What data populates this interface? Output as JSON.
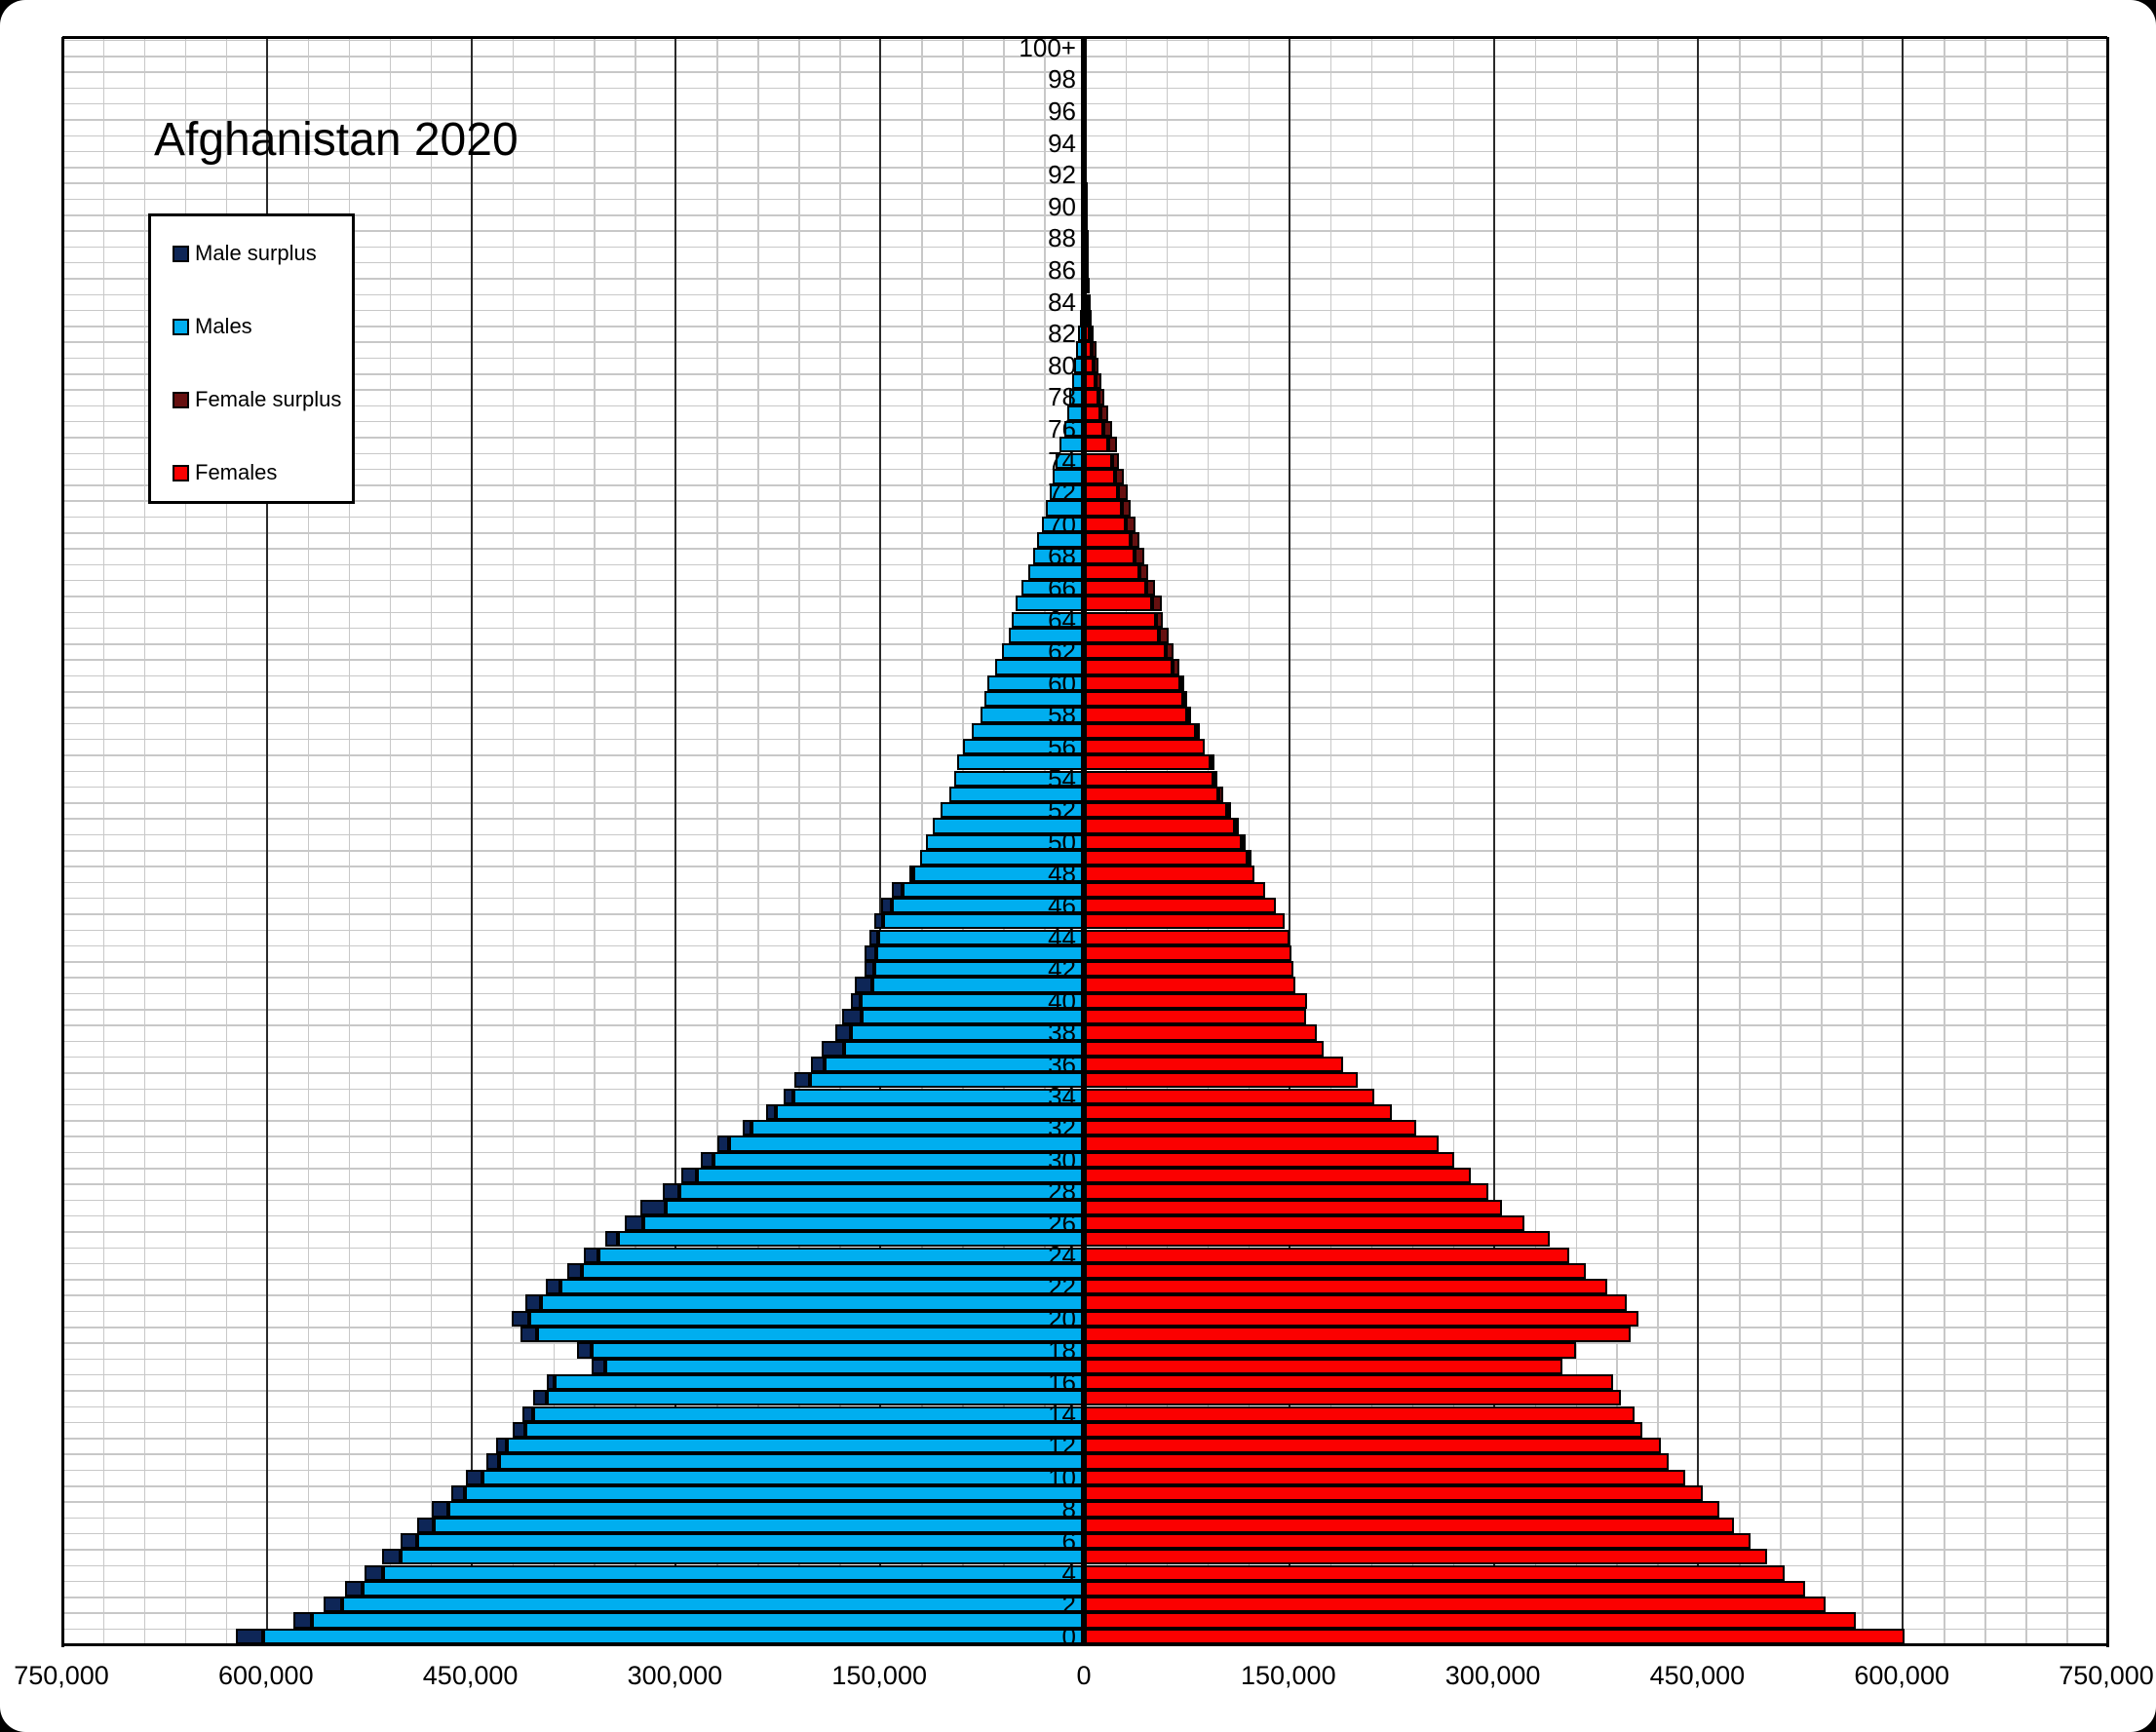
{
  "title": "Afghanistan 2020",
  "colors": {
    "male": "#00aeef",
    "male_surplus": "#0e2657",
    "female": "#fb0000",
    "female_surplus": "#661010",
    "grid_minor": "#c8c8c8",
    "grid_major": "#2a2a2a",
    "axis": "#000000"
  },
  "legend": {
    "items": [
      {
        "label": "Male surplus",
        "color": "#0e2657"
      },
      {
        "label": "Males",
        "color": "#00aeef"
      },
      {
        "label": "Female surplus",
        "color": "#661010"
      },
      {
        "label": "Females",
        "color": "#fb0000"
      }
    ]
  },
  "chart_data": {
    "type": "bar",
    "variant": "population-pyramid",
    "title": "Afghanistan 2020",
    "legend_position": "upper-left",
    "grid": "on",
    "x_axis": {
      "min": -750000,
      "max": 750000,
      "tick_interval": 150000,
      "minor_interval": 30000,
      "tick_labels": [
        "750,000",
        "600,000",
        "450,000",
        "300,000",
        "150,000",
        "0",
        "150,000",
        "300,000",
        "450,000",
        "600,000",
        "750,000"
      ]
    },
    "y_axis": {
      "unit": "single year of age",
      "min": 0,
      "max": 100,
      "label_step": 2,
      "age_labels": [
        "0",
        "2",
        "4",
        "6",
        "8",
        "10",
        "12",
        "14",
        "16",
        "18",
        "20",
        "22",
        "24",
        "26",
        "28",
        "30",
        "32",
        "34",
        "36",
        "38",
        "40",
        "42",
        "44",
        "46",
        "48",
        "50",
        "52",
        "54",
        "56",
        "58",
        "60",
        "62",
        "64",
        "66",
        "68",
        "70",
        "72",
        "74",
        "76",
        "78",
        "80",
        "82",
        "84",
        "86",
        "88",
        "90",
        "92",
        "94",
        "96",
        "98",
        "100+"
      ]
    },
    "series": [
      {
        "name": "Males",
        "side": "left",
        "values": [
          622000,
          580000,
          558000,
          542000,
          528000,
          515000,
          501000,
          489000,
          478000,
          464000,
          453000,
          438000,
          431000,
          419000,
          412000,
          404000,
          394000,
          361000,
          372000,
          413000,
          420000,
          410000,
          395000,
          379000,
          367000,
          351000,
          337000,
          325000,
          309000,
          295000,
          281000,
          269000,
          250000,
          233000,
          220000,
          212000,
          200000,
          192000,
          182000,
          177000,
          171000,
          168000,
          161000,
          161000,
          157000,
          154000,
          149000,
          141000,
          128000,
          120000,
          116000,
          111000,
          105000,
          99000,
          95000,
          93000,
          89000,
          82000,
          76000,
          73000,
          71000,
          65000,
          60000,
          55000,
          53000,
          50000,
          46000,
          41000,
          37000,
          34000,
          31000,
          28000,
          25000,
          23000,
          21000,
          18000,
          14000,
          12000,
          11000,
          8500,
          7000,
          5700,
          4300,
          3100,
          2300,
          1500,
          1000,
          700,
          450,
          300,
          200,
          130,
          90,
          60,
          40,
          25,
          15,
          10,
          7,
          5,
          3
        ]
      },
      {
        "name": "Females",
        "side": "right",
        "values": [
          602000,
          566000,
          544000,
          529000,
          514000,
          501000,
          489000,
          477000,
          466000,
          454000,
          441000,
          429000,
          423000,
          410000,
          404000,
          394000,
          388000,
          351000,
          361000,
          401000,
          407000,
          398000,
          384000,
          368000,
          356000,
          342000,
          323000,
          307000,
          297000,
          284000,
          272000,
          260000,
          244000,
          226000,
          213000,
          201000,
          190000,
          176000,
          171000,
          163000,
          164000,
          155000,
          154000,
          152000,
          151000,
          147000,
          141000,
          133000,
          125000,
          122000,
          119000,
          112000,
          106000,
          102000,
          98000,
          94000,
          89000,
          83000,
          79000,
          76000,
          74000,
          70000,
          66000,
          62000,
          58000,
          57000,
          52000,
          47000,
          44000,
          41000,
          38000,
          34000,
          32000,
          29000,
          26000,
          24000,
          21000,
          18000,
          15000,
          13000,
          11000,
          9000,
          7000,
          5500,
          4000,
          3000,
          2200,
          1600,
          1100,
          800,
          500,
          350,
          250,
          170,
          120,
          80,
          50,
          30,
          20,
          15,
          10
        ]
      }
    ],
    "surplus_rule": "male surplus = males - females drawn dark navy at tip of left bar; female surplus = females - males drawn dark red at tip of right bar"
  }
}
